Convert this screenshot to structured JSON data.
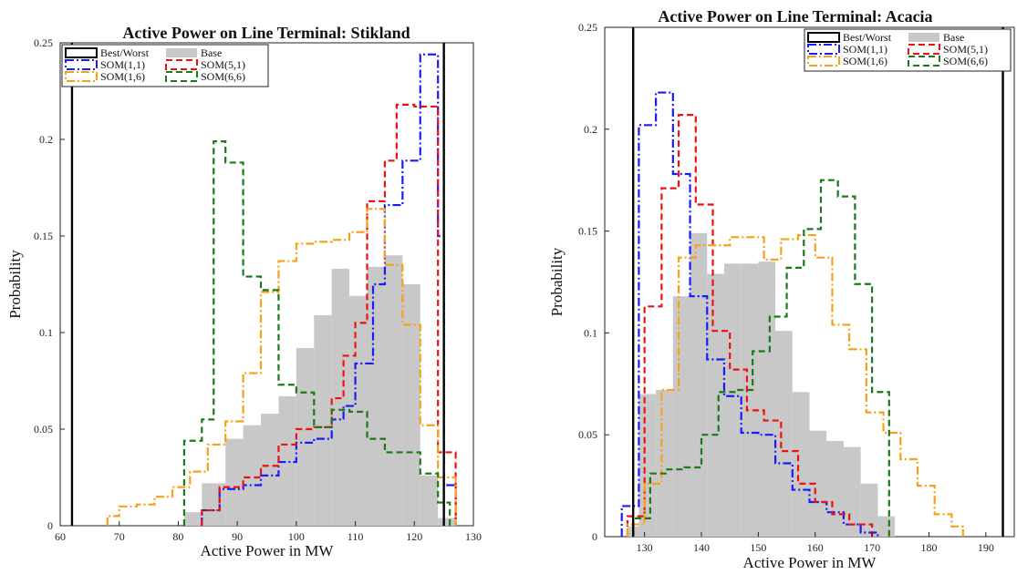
{
  "chart_data": [
    {
      "type": "histogram",
      "title": "Active Power on Line Terminal: Stikland",
      "xlabel": "Active Power in MW",
      "ylabel": "Probability",
      "xlim": [
        60,
        130
      ],
      "ylim": [
        0,
        0.25
      ],
      "xticks": [
        "60",
        "70",
        "80",
        "90",
        "100",
        "110",
        "120",
        "130"
      ],
      "yticks": [
        "0",
        "0.05",
        "0.1",
        "0.15",
        "0.2",
        "0.25"
      ],
      "grid": false,
      "legend_position": "top-left",
      "best_worst": [
        62,
        125
      ],
      "series": [
        {
          "name": "Best/Worst",
          "style": "best_worst",
          "color": "#000000"
        },
        {
          "name": "Base",
          "style": "fill",
          "color": "#c8c8c8",
          "edges": [
            81,
            84,
            88,
            91,
            94,
            97,
            100,
            103,
            106,
            109,
            112,
            115,
            118,
            121,
            124,
            127
          ],
          "values": [
            0.007,
            0.022,
            0.045,
            0.052,
            0.058,
            0.067,
            0.092,
            0.109,
            0.133,
            0.119,
            0.134,
            0.14,
            0.125,
            0.026,
            0.004
          ]
        },
        {
          "name": "SOM(1,1)",
          "style": "dashdot",
          "color": "#1a1aff",
          "edges": [
            84,
            87,
            91,
            94,
            97,
            100,
            103,
            106,
            108,
            110,
            113,
            115,
            118,
            121,
            124,
            125,
            127
          ],
          "values": [
            0.008,
            0.019,
            0.021,
            0.026,
            0.033,
            0.043,
            0.045,
            0.055,
            0.062,
            0.084,
            0.125,
            0.166,
            0.189,
            0.244,
            0.15,
            0.021
          ]
        },
        {
          "name": "SOM(5,1)",
          "style": "dashed",
          "color": "#ee1111",
          "edges": [
            84,
            87,
            91,
            94,
            97,
            100,
            103,
            106,
            108,
            110,
            112,
            115,
            117,
            120,
            124,
            127
          ],
          "values": [
            0.008,
            0.02,
            0.025,
            0.031,
            0.042,
            0.05,
            0.051,
            0.066,
            0.088,
            0.105,
            0.168,
            0.189,
            0.218,
            0.217,
            0.038
          ]
        },
        {
          "name": "SOM(1,6)",
          "style": "dashdot",
          "color": "#f5a21b",
          "edges": [
            68,
            70,
            73,
            76,
            79,
            82,
            85,
            88,
            91,
            94,
            97,
            100,
            103,
            106,
            109,
            112,
            115,
            118,
            121,
            124,
            127
          ],
          "values": [
            0.005,
            0.01,
            0.011,
            0.015,
            0.02,
            0.028,
            0.042,
            0.054,
            0.079,
            0.121,
            0.137,
            0.146,
            0.147,
            0.148,
            0.152,
            0.164,
            0.135,
            0.104,
            0.052,
            0.025
          ]
        },
        {
          "name": "SOM(6,6)",
          "style": "dashed",
          "color": "#1a7a1a",
          "edges": [
            81,
            84,
            86,
            88,
            91,
            94,
            97,
            100,
            103,
            106,
            109,
            112,
            115,
            118,
            121,
            124,
            126
          ],
          "values": [
            0.044,
            0.055,
            0.199,
            0.188,
            0.129,
            0.122,
            0.073,
            0.069,
            0.051,
            0.06,
            0.059,
            0.045,
            0.038,
            0.038,
            0.027,
            0.012
          ]
        }
      ]
    },
    {
      "type": "histogram",
      "title": "Active Power on Line Terminal: Acacia",
      "xlabel": "Active Power in MW",
      "ylabel": "Probability",
      "xlim": [
        123,
        195
      ],
      "ylim": [
        0,
        0.25
      ],
      "xticks": [
        "130",
        "140",
        "150",
        "160",
        "170",
        "180",
        "190"
      ],
      "yticks": [
        "0",
        "0.05",
        "0.1",
        "0.15",
        "0.2",
        "0.25"
      ],
      "grid": false,
      "legend_position": "top-right",
      "best_worst": [
        128,
        193
      ],
      "series": [
        {
          "name": "Best/Worst",
          "style": "best_worst",
          "color": "#000000"
        },
        {
          "name": "Base",
          "style": "fill",
          "color": "#c8c8c8",
          "edges": [
            127,
            129,
            132,
            135,
            138,
            141,
            144,
            147,
            150,
            153,
            156,
            159,
            162,
            165,
            168,
            171,
            174
          ],
          "values": [
            0.005,
            0.07,
            0.072,
            0.118,
            0.149,
            0.129,
            0.134,
            0.134,
            0.135,
            0.101,
            0.071,
            0.052,
            0.047,
            0.044,
            0.026,
            0.01
          ]
        },
        {
          "name": "SOM(1,1)",
          "style": "dashdot",
          "color": "#1a1aff",
          "edges": [
            126,
            129,
            132,
            135,
            138,
            141,
            144,
            147,
            150,
            153,
            156,
            159,
            162,
            165,
            168,
            171
          ],
          "values": [
            0.015,
            0.202,
            0.218,
            0.178,
            0.118,
            0.087,
            0.069,
            0.051,
            0.05,
            0.036,
            0.023,
            0.017,
            0.012,
            0.006,
            0.002
          ]
        },
        {
          "name": "SOM(5,1)",
          "style": "dashed",
          "color": "#ee1111",
          "edges": [
            127,
            130,
            133,
            136,
            139,
            142,
            145,
            148,
            151,
            154,
            157,
            160,
            163,
            166,
            170
          ],
          "values": [
            0.01,
            0.113,
            0.171,
            0.207,
            0.163,
            0.101,
            0.082,
            0.062,
            0.057,
            0.042,
            0.026,
            0.017,
            0.011,
            0.006
          ]
        },
        {
          "name": "SOM(1,6)",
          "style": "dashdot",
          "color": "#f5a21b",
          "edges": [
            127,
            130,
            133,
            136,
            139,
            142,
            145,
            148,
            151,
            154,
            157,
            160,
            163,
            166,
            169,
            172,
            175,
            178,
            181,
            184,
            186
          ],
          "values": [
            0.006,
            0.026,
            0.072,
            0.137,
            0.143,
            0.143,
            0.147,
            0.147,
            0.136,
            0.146,
            0.148,
            0.137,
            0.104,
            0.092,
            0.061,
            0.051,
            0.038,
            0.025,
            0.011,
            0.005
          ]
        },
        {
          "name": "SOM(6,6)",
          "style": "dashed",
          "color": "#1a7a1a",
          "edges": [
            128,
            131,
            134,
            137,
            140,
            143,
            146,
            149,
            152,
            155,
            158,
            161,
            164,
            167,
            170,
            173
          ],
          "values": [
            0.009,
            0.031,
            0.033,
            0.034,
            0.05,
            0.071,
            0.072,
            0.091,
            0.108,
            0.132,
            0.151,
            0.175,
            0.167,
            0.124,
            0.071
          ]
        }
      ]
    }
  ]
}
